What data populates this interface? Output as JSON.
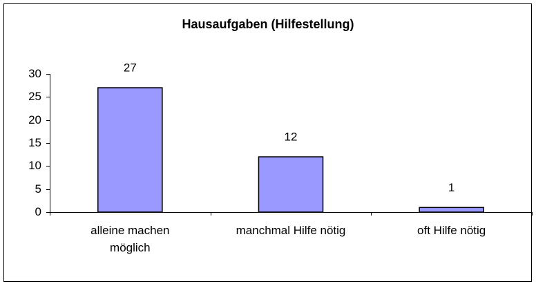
{
  "chart_data": {
    "type": "bar",
    "title": "Hausaufgaben (Hilfestellung)",
    "categories": [
      "alleine machen möglich",
      "manchmal Hilfe nötig",
      "oft Hilfe nötig"
    ],
    "values": [
      27,
      12,
      1
    ],
    "color": "#9999ff",
    "ylim": [
      0,
      30
    ],
    "yticks": [
      0,
      5,
      10,
      15,
      20,
      25,
      30
    ],
    "grid": false
  }
}
